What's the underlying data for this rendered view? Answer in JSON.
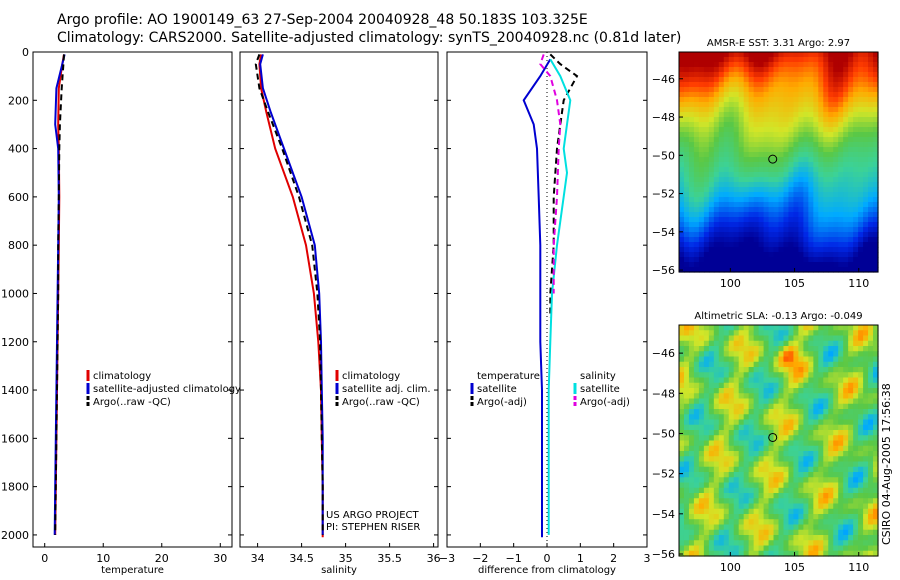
{
  "title_line1": "Argo profile: AO 1900149_63 27-Sep-2004 20040928_48 50.183S 103.325E",
  "title_line2": "Climatology: CARS2000. Satellite-adjusted climatology: synTS_20040928.nc (0.81d later)",
  "side_note": "CSIRO 04-Aug-2005 17:56:38",
  "colors": {
    "red": "#e00000",
    "blue": "#0000d0",
    "black": "#000000",
    "cyan": "#00e0e0",
    "magenta": "#e000e0"
  },
  "chart_data": [
    {
      "id": "temperature",
      "type": "line",
      "xlabel": "temperature",
      "xlim": [
        -2,
        32
      ],
      "xticks": [
        0,
        10,
        20,
        30
      ],
      "ylim": [
        2050,
        0
      ],
      "yticks": [
        0,
        200,
        400,
        600,
        800,
        1000,
        1200,
        1400,
        1600,
        1800,
        2000
      ],
      "legend": [
        "climatology",
        "satellite-adjusted climatology",
        "Argo(..raw -QC)"
      ],
      "series": [
        {
          "name": "climatology",
          "color": "red",
          "dash": "solid",
          "x": [
            3.3,
            3.0,
            2.4,
            2.3,
            2.4,
            2.5,
            2.4,
            2.3,
            2.2,
            2.1,
            2.0,
            1.9,
            1.8
          ],
          "y": [
            10,
            50,
            150,
            300,
            400,
            600,
            800,
            1000,
            1200,
            1400,
            1600,
            1800,
            2000
          ]
        },
        {
          "name": "satellite-adjusted climatology",
          "color": "blue",
          "dash": "solid",
          "x": [
            3.4,
            3.0,
            2.0,
            1.8,
            2.3,
            2.4,
            2.3,
            2.2,
            2.1,
            2.0,
            1.9,
            1.8,
            1.7
          ],
          "y": [
            10,
            50,
            150,
            300,
            400,
            600,
            800,
            1000,
            1200,
            1400,
            1600,
            1800,
            2000
          ]
        },
        {
          "name": "Argo(..raw -QC)",
          "color": "black",
          "dash": "dash",
          "x": [
            3.3,
            3.2,
            2.9,
            2.6,
            2.5,
            2.4,
            2.3,
            2.3,
            2.2,
            2.1,
            2.0,
            1.9,
            1.8
          ],
          "y": [
            10,
            50,
            150,
            300,
            400,
            600,
            800,
            1000,
            1200,
            1400,
            1600,
            1800,
            2000
          ]
        }
      ]
    },
    {
      "id": "salinity",
      "type": "line",
      "xlabel": "salinity",
      "xlim": [
        33.8,
        36.05
      ],
      "xticks": [
        34,
        34.5,
        35,
        35.5,
        36
      ],
      "ylim": [
        2050,
        0
      ],
      "yticks": [
        0,
        200,
        400,
        600,
        800,
        1000,
        1200,
        1400,
        1600,
        1800,
        2000
      ],
      "legend": [
        "climatology",
        "satellite adj. clim.",
        "Argo(..raw -QC)"
      ],
      "annotation": [
        "US ARGO PROJECT",
        "PI: STEPHEN RISER"
      ],
      "series": [
        {
          "name": "climatology",
          "color": "red",
          "dash": "solid",
          "x": [
            34.04,
            34.02,
            34.04,
            34.1,
            34.2,
            34.4,
            34.55,
            34.64,
            34.69,
            34.72,
            34.73,
            34.74,
            34.74,
            34.74
          ],
          "y": [
            10,
            50,
            150,
            250,
            400,
            600,
            800,
            1000,
            1200,
            1400,
            1600,
            1800,
            2000,
            2010
          ]
        },
        {
          "name": "satellite adj. clim.",
          "color": "blue",
          "dash": "solid",
          "x": [
            34.06,
            34.03,
            34.06,
            34.15,
            34.3,
            34.5,
            34.65,
            34.7,
            34.72,
            34.73,
            34.74,
            34.74,
            34.74
          ],
          "y": [
            10,
            50,
            150,
            250,
            400,
            600,
            800,
            1000,
            1200,
            1400,
            1600,
            1800,
            2000
          ]
        },
        {
          "name": "Argo(..raw -QC)",
          "color": "black",
          "dash": "dash",
          "x": [
            34.02,
            33.98,
            34.02,
            34.12,
            34.28,
            34.47,
            34.62,
            34.68,
            34.71,
            34.72,
            34.73,
            34.74,
            34.74
          ],
          "y": [
            10,
            50,
            150,
            250,
            400,
            600,
            800,
            1000,
            1200,
            1400,
            1600,
            1800,
            2000
          ]
        }
      ]
    },
    {
      "id": "difference",
      "type": "line",
      "xlabel": "difference from climatology",
      "xlim": [
        -3,
        3
      ],
      "xticks": [
        -3,
        -2,
        -1,
        0,
        1,
        2,
        3
      ],
      "ylim": [
        2050,
        0
      ],
      "yticks": [
        0,
        200,
        400,
        600,
        800,
        1000,
        1200,
        1400,
        1600,
        1800,
        2000
      ],
      "legend_left": [
        "temperature",
        "satellite",
        "Argo(-adj)"
      ],
      "legend_right": [
        "salinity",
        "satellite",
        "Argo(-adj)"
      ],
      "series": [
        {
          "name": "temperature satellite",
          "color": "blue",
          "dash": "solid",
          "x": [
            0.1,
            -0.2,
            -0.7,
            -0.4,
            -0.3,
            -0.25,
            -0.2,
            -0.2,
            -0.2,
            -0.15,
            -0.15,
            -0.15,
            -0.15,
            -0.15
          ],
          "y": [
            30,
            100,
            200,
            300,
            400,
            600,
            800,
            1000,
            1200,
            1400,
            1600,
            1800,
            2000,
            2010
          ]
        },
        {
          "name": "temperature Argo(-adj)",
          "color": "black",
          "dash": "dash",
          "x": [
            0.1,
            0.4,
            0.9,
            0.5,
            0.4,
            0.3,
            0.2,
            0.2,
            0.1,
            0.1
          ],
          "y": [
            10,
            50,
            100,
            200,
            300,
            400,
            600,
            800,
            1000,
            1100
          ]
        },
        {
          "name": "salinity satellite",
          "color": "cyan",
          "dash": "solid",
          "x": [
            0.1,
            0.4,
            0.7,
            0.6,
            0.5,
            0.6,
            0.3,
            0.15,
            0.1,
            0.05,
            0.05,
            0.05,
            0.05
          ],
          "y": [
            30,
            100,
            200,
            300,
            400,
            500,
            800,
            1000,
            1200,
            1400,
            1600,
            1800,
            2000
          ]
        },
        {
          "name": "salinity Argo(-adj)",
          "color": "magenta",
          "dash": "dash",
          "x": [
            -0.1,
            -0.2,
            0.1,
            0.3,
            0.4,
            0.35,
            0.3,
            0.2,
            0.2
          ],
          "y": [
            10,
            50,
            100,
            200,
            300,
            400,
            600,
            800,
            1000
          ]
        }
      ]
    },
    {
      "id": "sst-map",
      "type": "heatmap",
      "title": "AMSR-E SST: 3.31 Argo: 2.97",
      "xlim": [
        96,
        111.5
      ],
      "ylim": [
        -56.1,
        -44.6
      ],
      "xticks": [
        100,
        105,
        110
      ],
      "yticks": [
        -46,
        -48,
        -50,
        -52,
        -54,
        -56
      ],
      "marker": [
        103.3,
        -50.2
      ]
    },
    {
      "id": "sla-map",
      "type": "heatmap",
      "title": "Altimetric SLA: -0.13 Argo: -0.049",
      "xlim": [
        96,
        111.5
      ],
      "ylim": [
        -56.1,
        -44.6
      ],
      "xticks": [
        100,
        105,
        110
      ],
      "yticks": [
        -46,
        -48,
        -50,
        -52,
        -54,
        -56
      ],
      "marker": [
        103.3,
        -50.2
      ]
    }
  ]
}
